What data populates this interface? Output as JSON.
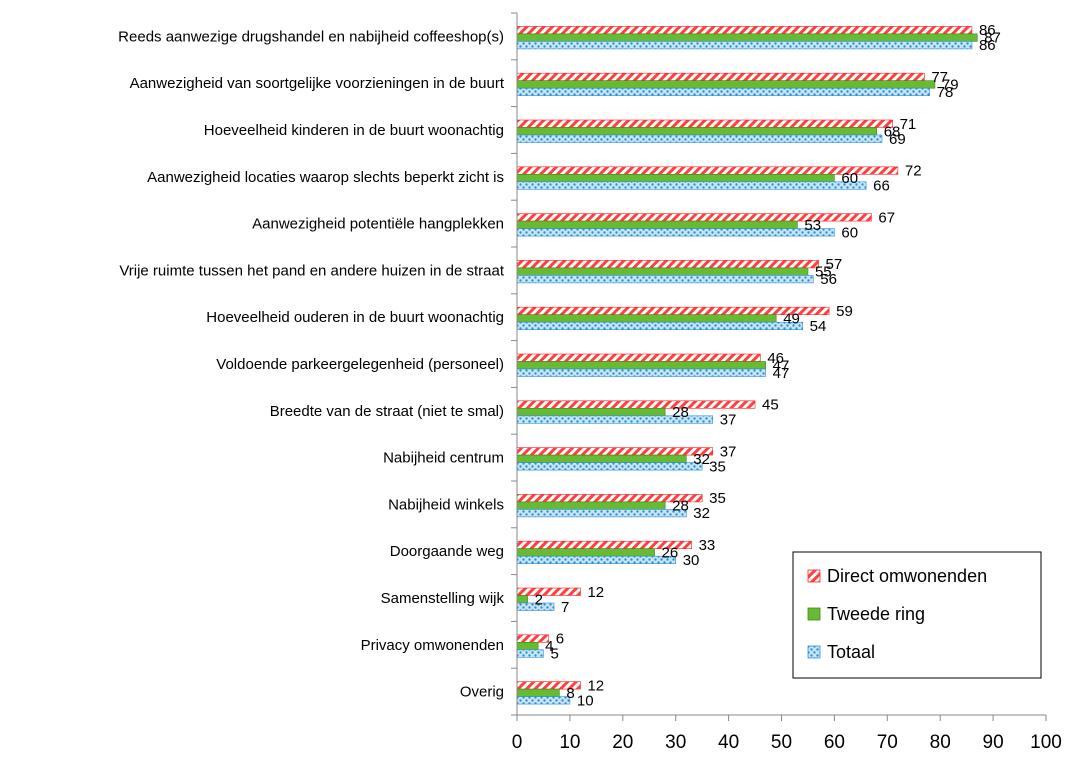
{
  "chart_data": {
    "type": "bar",
    "orientation": "horizontal",
    "categories": [
      "Reeds aanwezige drugshandel en nabijheid coffeeshop(s)",
      "Aanwezigheid van soortgelijke voorzieningen in de buurt",
      "Hoeveelheid kinderen in de buurt woonachtig",
      "Aanwezigheid locaties waarop slechts beperkt zicht is",
      "Aanwezigheid potentiële hangplekken",
      "Vrije ruimte tussen het pand en andere huizen in de straat",
      "Hoeveelheid ouderen in de buurt woonachtig",
      "Voldoende parkeergelegenheid (personeel)",
      "Breedte van de straat (niet te smal)",
      "Nabijheid centrum",
      "Nabijheid winkels",
      "Doorgaande weg",
      "Samenstelling wijk",
      "Privacy omwonenden",
      "Overig"
    ],
    "series": [
      {
        "name": "Direct omwonenden",
        "color": "#ff4040",
        "values": [
          86,
          77,
          71,
          72,
          67,
          57,
          59,
          46,
          45,
          37,
          35,
          33,
          12,
          6,
          12
        ]
      },
      {
        "name": "Tweede ring",
        "color": "#66bb33",
        "values": [
          87,
          79,
          68,
          60,
          53,
          55,
          49,
          47,
          28,
          32,
          28,
          26,
          2,
          4,
          8
        ]
      },
      {
        "name": "Totaal",
        "color": "#4da6e8",
        "values": [
          86,
          78,
          69,
          66,
          60,
          56,
          54,
          47,
          37,
          35,
          32,
          30,
          7,
          5,
          10
        ]
      }
    ],
    "xlim": [
      0,
      100
    ],
    "xticks": [
      0,
      10,
      20,
      30,
      40,
      50,
      60,
      70,
      80,
      90,
      100
    ],
    "grid": false,
    "legend_position": "bottom-right"
  }
}
